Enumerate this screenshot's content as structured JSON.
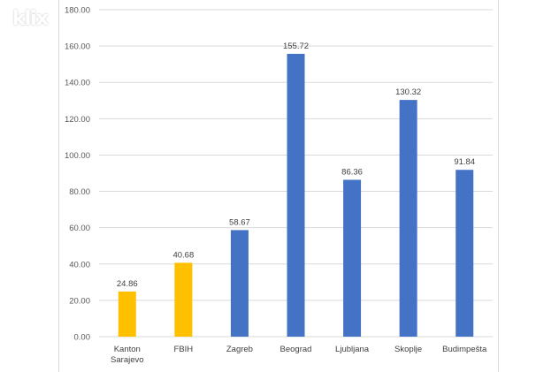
{
  "watermark": {
    "text": "klix"
  },
  "chart_data": {
    "type": "bar",
    "categories": [
      [
        "Kanton",
        "Sarajevo"
      ],
      [
        "FBIH"
      ],
      [
        "Zagreb"
      ],
      [
        "Beograd"
      ],
      [
        "Ljubljana"
      ],
      [
        "Skoplje"
      ],
      [
        "Budimpešta"
      ]
    ],
    "values": [
      24.86,
      40.68,
      58.67,
      155.72,
      86.36,
      130.32,
      91.84
    ],
    "value_labels": [
      "24.86",
      "40.68",
      "58.67",
      "155.72",
      "86.36",
      "130.32",
      "91.84"
    ],
    "bar_colors": [
      "#ffc000",
      "#ffc000",
      "#4472c4",
      "#4472c4",
      "#4472c4",
      "#4472c4",
      "#4472c4"
    ],
    "ylim": [
      0,
      180
    ],
    "yticks": [
      "0.00",
      "20.00",
      "40.00",
      "60.00",
      "80.00",
      "100.00",
      "120.00",
      "140.00",
      "160.00",
      "180.00"
    ],
    "title": "",
    "xlabel": "",
    "ylabel": "",
    "grid": true,
    "legend": "none"
  }
}
